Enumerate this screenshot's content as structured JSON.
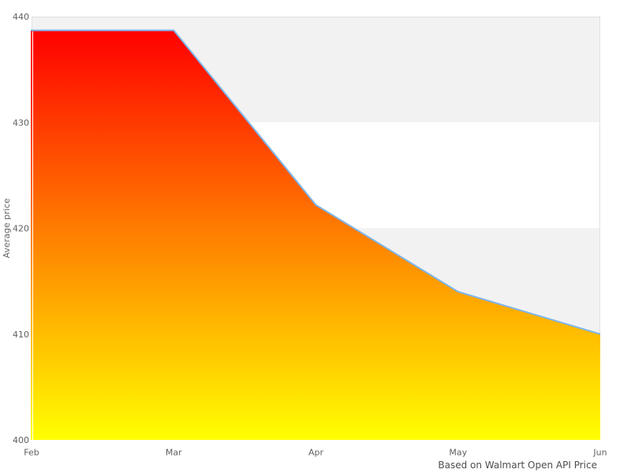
{
  "chart_data": {
    "type": "area",
    "x": [
      "Feb",
      "Mar",
      "Apr",
      "May",
      "Jun"
    ],
    "series": [
      {
        "name": "Average price",
        "values": [
          438.7,
          438.7,
          422.2,
          414,
          410
        ]
      }
    ],
    "xlabel": "",
    "ylabel": "Average price",
    "ylim": [
      400,
      440
    ],
    "yticks": [
      400,
      410,
      420,
      430,
      440
    ],
    "caption": "Based on Walmart Open API Price",
    "legend": "none",
    "grid": "alternating horizontal bands, no gridlines",
    "colors": {
      "line": "#7cb5ec",
      "fill_gradient_top": "#ff0000",
      "fill_gradient_bottom": "#ffff00",
      "band_shaded": "#f2f2f2",
      "band_plain": "#ffffff",
      "plot_border": "#e0e0e0",
      "tick_label": "#606060",
      "axis_title": "#666666",
      "caption": "#4d4d4d",
      "left_edge_artifact": "#ffffff"
    }
  }
}
